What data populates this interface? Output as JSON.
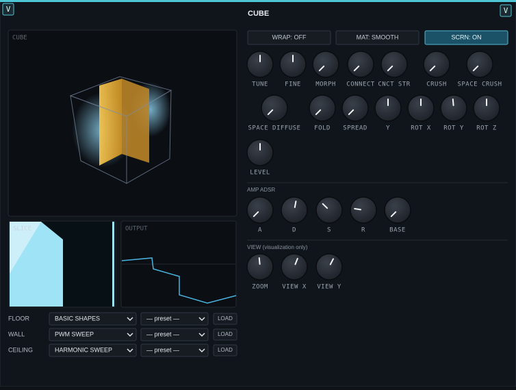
{
  "header": {
    "title": "CUBE"
  },
  "panels": {
    "cube": "CUBE",
    "slice": "SLICE",
    "output": "OUTPUT"
  },
  "sources": [
    {
      "label": "FLOOR",
      "shape": "BASIC SHAPES",
      "preset": "— preset —",
      "button": "LOAD"
    },
    {
      "label": "WALL",
      "shape": "PWM SWEEP",
      "preset": "— preset —",
      "button": "LOAD"
    },
    {
      "label": "CEILING",
      "shape": "HARMONIC SWEEP",
      "preset": "— preset —",
      "button": "LOAD"
    }
  ],
  "toggles": {
    "labels": [
      "WRAP: OFF",
      "MAT: SMOOTH",
      "SCRN: ON"
    ],
    "active": [
      false,
      false,
      true
    ]
  },
  "sections": [
    {
      "knobs": [
        {
          "label": "TUNE",
          "value": 0.5
        },
        {
          "label": "FINE",
          "value": 0.5
        },
        {
          "label": "MORPH",
          "value": 0.0
        },
        {
          "label": "CONNECT",
          "value": 0.0
        },
        {
          "label": "CNCT STR",
          "value": 0.0
        },
        {
          "label": "CRUSH",
          "value": 0.0
        },
        {
          "label": "SPACE CRUSH",
          "value": 0.0
        },
        {
          "label": "SPACE DIFFUSE",
          "value": 0.0
        },
        {
          "label": "FOLD",
          "value": 0.0
        },
        {
          "label": "SPREAD",
          "value": 0.0
        },
        {
          "label": "Y",
          "value": 0.5
        },
        {
          "label": "ROT X",
          "value": 0.5
        },
        {
          "label": "ROT Y",
          "value": 0.48
        },
        {
          "label": "ROT Z",
          "value": 0.5
        },
        {
          "label": "LEVEL",
          "value": 0.5
        }
      ]
    },
    {
      "title": "AMP ADSR",
      "knobs": [
        {
          "label": "A",
          "value": 0.0
        },
        {
          "label": "D",
          "value": 0.54
        },
        {
          "label": "S",
          "value": 0.33
        },
        {
          "label": "R",
          "value": 0.2
        },
        {
          "label": "BASE",
          "value": 0.0
        }
      ]
    },
    {
      "title": "VIEW (visualization only)",
      "knobs": [
        {
          "label": "ZOOM",
          "value": 0.48
        },
        {
          "label": "VIEW X",
          "value": 0.58
        },
        {
          "label": "VIEW Y",
          "value": 0.6
        }
      ]
    }
  ]
}
